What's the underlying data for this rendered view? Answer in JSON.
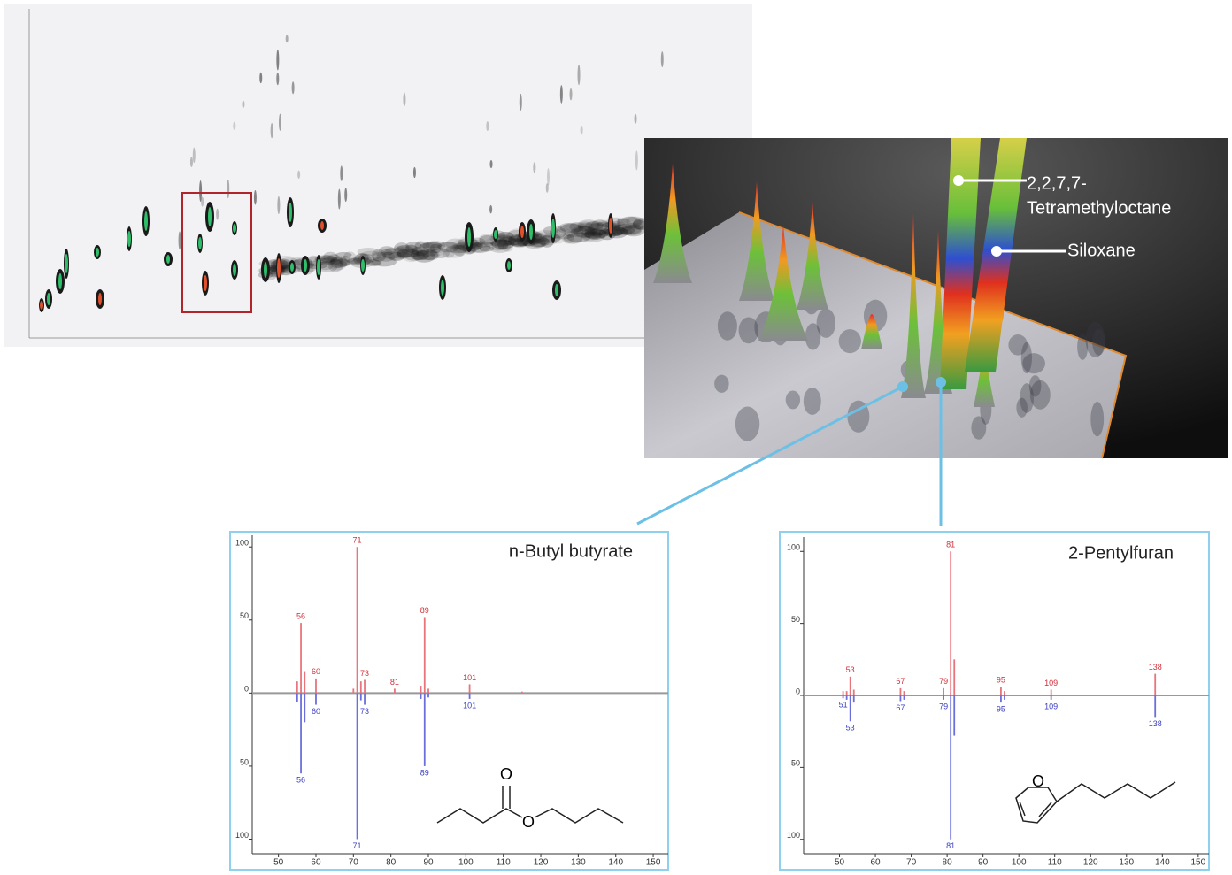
{
  "chart_data": [
    {
      "type": "mirror_bar",
      "title": "n-Butyl butyrate",
      "structure_labels": [
        "O",
        "O"
      ],
      "xlim": [
        43,
        154
      ],
      "xticks": [
        50,
        60,
        70,
        80,
        90,
        100,
        110,
        120,
        130,
        140,
        150
      ],
      "ylim": [
        -110,
        108
      ],
      "yticks": [
        {
          "value": -100,
          "label": "100"
        },
        {
          "value": -50,
          "label": "50"
        },
        0,
        50,
        100
      ],
      "series": [
        {
          "color": "#e8747c",
          "data_labels": true,
          "x": [
            56,
            60,
            71,
            73,
            81,
            89,
            101
          ],
          "values": [
            48,
            10,
            100,
            9,
            3,
            52,
            6
          ]
        },
        {
          "color": "#6b6fdc",
          "data_labels": true,
          "x": [
            56,
            60,
            71,
            73,
            89,
            101
          ],
          "values": [
            -55,
            -8,
            -100,
            -8,
            -50,
            -4
          ]
        },
        {
          "color": "#e8747c",
          "x": [
            55,
            57,
            70,
            72,
            88,
            90,
            115
          ],
          "values": [
            8,
            15,
            3,
            8,
            5,
            3,
            1
          ]
        },
        {
          "color": "#6b6fdc",
          "x": [
            55,
            57,
            72,
            88,
            90
          ],
          "values": [
            -6,
            -20,
            -5,
            -4,
            -3
          ]
        }
      ]
    },
    {
      "type": "mirror_bar",
      "title": "2-Pentylfuran",
      "structure_labels": [
        "O"
      ],
      "xlim": [
        40,
        153
      ],
      "xticks": [
        50,
        60,
        70,
        80,
        90,
        100,
        110,
        120,
        130,
        140,
        150
      ],
      "ylim": [
        -110,
        110
      ],
      "yticks": [
        {
          "value": -100,
          "label": "100"
        },
        {
          "value": -50,
          "label": "50"
        },
        0,
        50,
        100
      ],
      "series": [
        {
          "color": "#e8747c",
          "data_labels": true,
          "x": [
            53,
            67,
            79,
            81,
            95,
            109,
            138
          ],
          "values": [
            13,
            5,
            5,
            100,
            6,
            4,
            15
          ]
        },
        {
          "color": "#6b6fdc",
          "data_labels": true,
          "x": [
            51,
            53,
            67,
            79,
            81,
            95,
            109,
            138
          ],
          "values": [
            -2,
            -18,
            -4,
            -3,
            -100,
            -5,
            -3,
            -15
          ]
        },
        {
          "color": "#e8747c",
          "x": [
            51,
            52,
            54,
            68,
            82,
            96
          ],
          "values": [
            3,
            3,
            4,
            3,
            25,
            3
          ]
        },
        {
          "color": "#6b6fdc",
          "x": [
            52,
            54,
            68,
            82,
            96
          ],
          "values": [
            -3,
            -5,
            -3,
            -28,
            -3
          ]
        }
      ]
    }
  ],
  "annotations": [
    {
      "lines": [
        "2,2,7,7-",
        "Tetramethyloctane"
      ]
    },
    {
      "lines": [
        "Siloxane"
      ]
    }
  ]
}
